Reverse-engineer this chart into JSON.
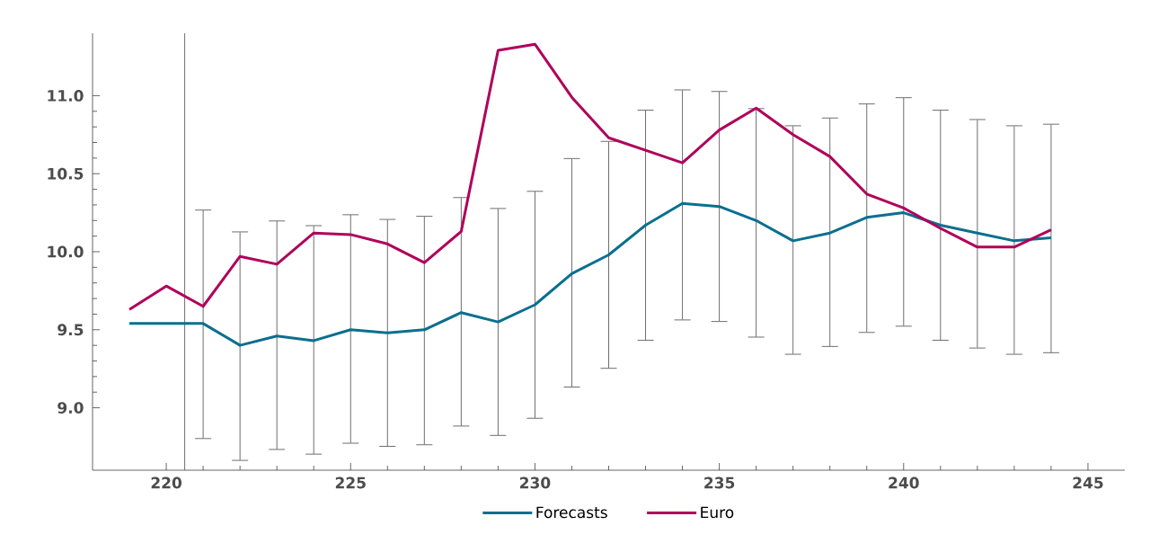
{
  "chart_data": {
    "type": "line",
    "x": [
      219,
      220,
      221,
      222,
      223,
      224,
      225,
      226,
      227,
      228,
      229,
      230,
      231,
      232,
      233,
      234,
      235,
      236,
      237,
      238,
      239,
      240,
      241,
      242,
      243,
      244
    ],
    "series": [
      {
        "name": "Forecasts",
        "color": "#0a6f8e",
        "values": [
          9.54,
          9.54,
          9.54,
          9.4,
          9.46,
          9.43,
          9.5,
          9.48,
          9.5,
          9.61,
          9.55,
          9.66,
          9.86,
          9.98,
          10.17,
          10.31,
          10.29,
          10.2,
          10.07,
          10.12,
          10.22,
          10.25,
          10.17,
          10.12,
          10.07,
          10.09
        ],
        "errors": [
          null,
          null,
          [
            8.8,
            10.27
          ],
          [
            8.66,
            10.13
          ],
          [
            8.73,
            10.2
          ],
          [
            8.7,
            10.17
          ],
          [
            8.77,
            10.24
          ],
          [
            8.75,
            10.21
          ],
          [
            8.76,
            10.23
          ],
          [
            8.88,
            10.35
          ],
          [
            8.82,
            10.28
          ],
          [
            8.93,
            10.39
          ],
          [
            9.13,
            10.6
          ],
          [
            9.25,
            10.71
          ],
          [
            9.43,
            10.91
          ],
          [
            9.56,
            11.04
          ],
          [
            9.55,
            11.03
          ],
          [
            9.45,
            10.92
          ],
          [
            9.34,
            10.81
          ],
          [
            9.39,
            10.86
          ],
          [
            9.48,
            10.95
          ],
          [
            9.52,
            10.99
          ],
          [
            9.43,
            10.91
          ],
          [
            9.38,
            10.85
          ],
          [
            9.34,
            10.81
          ],
          [
            9.35,
            10.82
          ]
        ]
      },
      {
        "name": "Euro",
        "color": "#b0005a",
        "values": [
          9.63,
          9.78,
          9.65,
          9.97,
          9.92,
          10.12,
          10.11,
          10.05,
          9.93,
          10.13,
          11.29,
          11.33,
          10.99,
          10.73,
          10.65,
          10.57,
          10.78,
          10.92,
          10.75,
          10.61,
          10.37,
          10.28,
          10.15,
          10.03,
          10.03,
          10.14
        ]
      }
    ],
    "xlim": [
      218,
      246
    ],
    "xticks": [
      220,
      225,
      230,
      235,
      240,
      245
    ],
    "ylim": [
      8.6,
      11.4
    ],
    "yticks": [
      {
        "value": 9.0,
        "label": "9.0"
      },
      {
        "value": 9.5,
        "label": "9.5"
      },
      {
        "value": 10.0,
        "label": "10.0"
      },
      {
        "value": 10.5,
        "label": "10.5"
      },
      {
        "value": 11.0,
        "label": "11.0"
      }
    ],
    "ref_lines": [
      {
        "axis": "x",
        "value": 220.5,
        "color": "#6e6e6e"
      }
    ],
    "legend": "bottom",
    "marker": "none"
  }
}
